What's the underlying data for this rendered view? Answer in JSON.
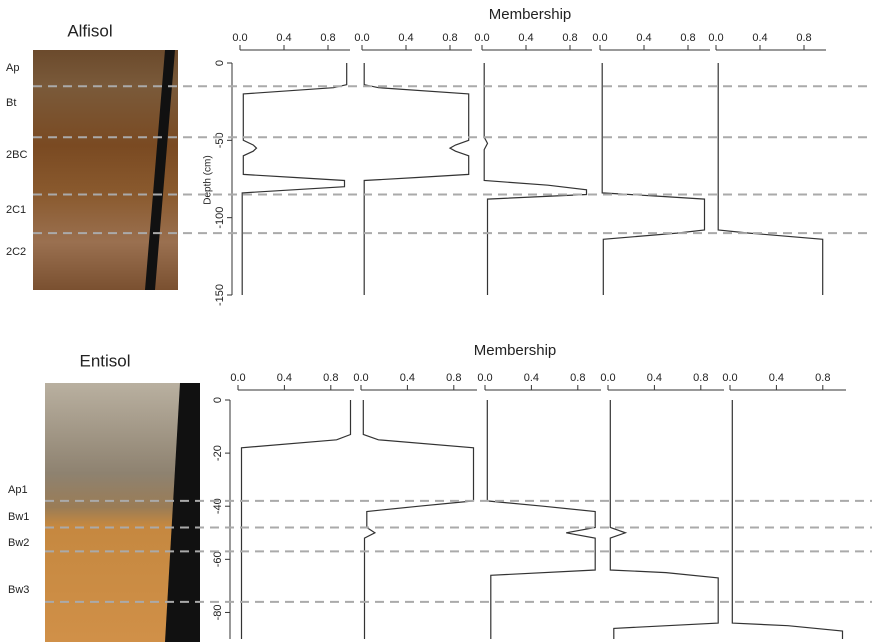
{
  "chart_data": [
    {
      "type": "line",
      "title": "Alfisol",
      "x_label": "Membership",
      "y_label": "Depth (cm)",
      "horizons": [
        "Ap",
        "Bt",
        "2BC",
        "2C1",
        "2C2"
      ],
      "boundaries": [
        -15,
        -48,
        -85,
        -110
      ],
      "xlim": [
        0,
        1
      ],
      "xticks": [
        {
          "value": 0,
          "label": "0.0"
        },
        0.4,
        0.8
      ],
      "ylim": [
        0,
        -150
      ],
      "yticks": [
        0,
        -50,
        -100,
        -150
      ],
      "series": [
        {
          "color": "#333333",
          "depth": [
            0,
            -14,
            -16,
            -20,
            -50,
            -53,
            -55,
            -57,
            -60,
            -72,
            -74,
            -76,
            -80,
            -84,
            -150
          ],
          "values": [
            0.97,
            0.97,
            0.85,
            0.03,
            0.03,
            0.12,
            0.15,
            0.12,
            0.03,
            0.03,
            0.5,
            0.95,
            0.95,
            0.02,
            0.02
          ]
        },
        {
          "color": "#333333",
          "depth": [
            0,
            -14,
            -16,
            -20,
            -50,
            -53,
            -55,
            -57,
            -60,
            -72,
            -74,
            -76,
            -150
          ],
          "values": [
            0.02,
            0.02,
            0.15,
            0.97,
            0.97,
            0.85,
            0.8,
            0.85,
            0.97,
            0.97,
            0.5,
            0.02,
            0.02
          ]
        },
        {
          "color": "#333333",
          "depth": [
            0,
            -48,
            -52,
            -56,
            -76,
            -79,
            -82,
            -85,
            -88,
            -150
          ],
          "values": [
            0.02,
            0.02,
            0.05,
            0.02,
            0.02,
            0.6,
            0.95,
            0.95,
            0.05,
            0.05
          ]
        },
        {
          "color": "#333333",
          "depth": [
            0,
            -84,
            -86,
            -88,
            -108,
            -110,
            -114,
            -150
          ],
          "values": [
            0.02,
            0.02,
            0.5,
            0.95,
            0.95,
            0.7,
            0.03,
            0.03
          ]
        },
        {
          "color": "#333333",
          "depth": [
            0,
            -108,
            -110,
            -114,
            -150
          ],
          "values": [
            0.02,
            0.02,
            0.3,
            0.97,
            0.97
          ]
        }
      ]
    },
    {
      "type": "line",
      "title": "Entisol",
      "x_label": "Membership",
      "horizons": [
        "Ap1",
        "Bw1",
        "Bw2",
        "Bw3"
      ],
      "boundaries": [
        -38,
        -48,
        -57,
        -76
      ],
      "xlim": [
        0,
        1
      ],
      "xticks": [
        {
          "value": 0,
          "label": "0.0"
        },
        0.4,
        0.8
      ],
      "ylim": [
        0,
        -90
      ],
      "yticks": [
        0,
        -20,
        -40,
        -60,
        -80
      ],
      "series": [
        {
          "color": "#333333",
          "depth": [
            0,
            -13,
            -15,
            -18,
            -90
          ],
          "values": [
            0.97,
            0.97,
            0.85,
            0.03,
            0.03
          ]
        },
        {
          "color": "#333333",
          "depth": [
            0,
            -13,
            -15,
            -18,
            -38,
            -40,
            -42,
            -48,
            -50,
            -52,
            -90
          ],
          "values": [
            0.02,
            0.02,
            0.15,
            0.97,
            0.97,
            0.5,
            0.05,
            0.05,
            0.12,
            0.03,
            0.03
          ]
        },
        {
          "color": "#333333",
          "depth": [
            0,
            -38,
            -40,
            -42,
            -48,
            -50,
            -52,
            -64,
            -66,
            -90
          ],
          "values": [
            0.02,
            0.02,
            0.5,
            0.95,
            0.95,
            0.7,
            0.95,
            0.95,
            0.05,
            0.05
          ]
        },
        {
          "color": "#333333",
          "depth": [
            0,
            -48,
            -50,
            -52,
            -64,
            -65,
            -67,
            -84,
            -86,
            -90
          ],
          "values": [
            0.02,
            0.02,
            0.15,
            0.02,
            0.02,
            0.5,
            0.95,
            0.95,
            0.05,
            0.05
          ]
        },
        {
          "color": "#333333",
          "depth": [
            0,
            -84,
            -85,
            -87,
            -90
          ],
          "values": [
            0.02,
            0.02,
            0.5,
            0.97,
            0.97
          ]
        }
      ]
    }
  ]
}
